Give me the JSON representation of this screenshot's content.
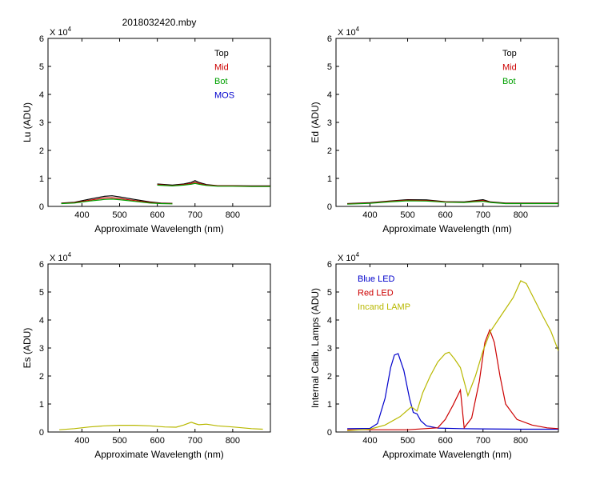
{
  "figure": {
    "title": "2018032420.mby"
  },
  "chart_data": [
    {
      "type": "line",
      "panel": "top-left",
      "xlabel": "Approximate Wavelength (nm)",
      "ylabel": "Lu (ADU)",
      "y_multiplier": "X 10",
      "y_multiplier_exp": "4",
      "xlim": [
        310,
        900
      ],
      "ylim": [
        0,
        6
      ],
      "xticks": [
        400,
        500,
        600,
        700,
        800
      ],
      "yticks": [
        0,
        1,
        2,
        3,
        4,
        5,
        6
      ],
      "legend_position": "top-right",
      "legend": [
        {
          "name": "Top",
          "color": "#000000"
        },
        {
          "name": "Mid",
          "color": "#cc0000"
        },
        {
          "name": "Bot",
          "color": "#00a000"
        },
        {
          "name": "MOS",
          "color": "#0000cc"
        }
      ],
      "series": [
        {
          "name": "Top",
          "color": "#000000",
          "x": [
            345,
            380,
            420,
            460,
            480,
            500,
            540,
            580,
            610,
            640
          ],
          "y": [
            0.12,
            0.15,
            0.26,
            0.36,
            0.38,
            0.34,
            0.25,
            0.16,
            0.12,
            0.11
          ]
        },
        {
          "name": "Mid",
          "color": "#cc0000",
          "x": [
            345,
            380,
            420,
            460,
            480,
            500,
            540,
            580,
            610,
            640
          ],
          "y": [
            0.11,
            0.13,
            0.22,
            0.3,
            0.31,
            0.28,
            0.21,
            0.14,
            0.11,
            0.1
          ]
        },
        {
          "name": "Bot",
          "color": "#00a000",
          "x": [
            345,
            380,
            420,
            460,
            480,
            500,
            540,
            580,
            610,
            640
          ],
          "y": [
            0.1,
            0.12,
            0.19,
            0.25,
            0.26,
            0.24,
            0.18,
            0.12,
            0.1,
            0.09
          ]
        },
        {
          "name": "Top",
          "color": "#000000",
          "x": [
            600,
            640,
            670,
            690,
            700,
            710,
            730,
            760,
            800,
            850,
            900
          ],
          "y": [
            0.8,
            0.76,
            0.8,
            0.86,
            0.92,
            0.86,
            0.78,
            0.74,
            0.74,
            0.73,
            0.73
          ]
        },
        {
          "name": "Mid",
          "color": "#cc0000",
          "x": [
            600,
            640,
            670,
            690,
            700,
            710,
            730,
            760,
            800,
            850,
            900
          ],
          "y": [
            0.78,
            0.74,
            0.78,
            0.82,
            0.86,
            0.82,
            0.76,
            0.73,
            0.73,
            0.72,
            0.72
          ]
        },
        {
          "name": "Bot",
          "color": "#00a000",
          "x": [
            600,
            640,
            670,
            690,
            700,
            710,
            730,
            760,
            800,
            850,
            900
          ],
          "y": [
            0.76,
            0.73,
            0.76,
            0.79,
            0.82,
            0.79,
            0.75,
            0.72,
            0.72,
            0.71,
            0.71
          ]
        }
      ]
    },
    {
      "type": "line",
      "panel": "top-right",
      "xlabel": "Approximate Wavelength (nm)",
      "ylabel": "Ed  (ADU)",
      "y_multiplier": "X 10",
      "y_multiplier_exp": "4",
      "xlim": [
        310,
        900
      ],
      "ylim": [
        0,
        6
      ],
      "xticks": [
        400,
        500,
        600,
        700,
        800
      ],
      "yticks": [
        0,
        1,
        2,
        3,
        4,
        5,
        6
      ],
      "legend_position": "top-right",
      "legend": [
        {
          "name": "Top",
          "color": "#000000"
        },
        {
          "name": "Mid",
          "color": "#cc0000"
        },
        {
          "name": "Bot",
          "color": "#00a000"
        }
      ],
      "series": [
        {
          "name": "Top",
          "color": "#000000",
          "x": [
            340,
            400,
            450,
            500,
            550,
            600,
            650,
            680,
            700,
            720,
            760,
            800,
            900
          ],
          "y": [
            0.1,
            0.13,
            0.19,
            0.24,
            0.23,
            0.17,
            0.16,
            0.21,
            0.24,
            0.16,
            0.12,
            0.12,
            0.12
          ]
        },
        {
          "name": "Mid",
          "color": "#cc0000",
          "x": [
            340,
            400,
            450,
            500,
            550,
            600,
            650,
            680,
            700,
            720,
            760,
            800,
            900
          ],
          "y": [
            0.09,
            0.12,
            0.18,
            0.22,
            0.21,
            0.16,
            0.15,
            0.19,
            0.21,
            0.15,
            0.11,
            0.11,
            0.11
          ]
        },
        {
          "name": "Bot",
          "color": "#00a000",
          "x": [
            340,
            400,
            450,
            500,
            550,
            600,
            650,
            680,
            700,
            720,
            760,
            800,
            900
          ],
          "y": [
            0.08,
            0.11,
            0.16,
            0.2,
            0.19,
            0.15,
            0.14,
            0.17,
            0.18,
            0.14,
            0.1,
            0.1,
            0.1
          ]
        }
      ]
    },
    {
      "type": "line",
      "panel": "bottom-left",
      "xlabel": "Approximate Wavelength (nm)",
      "ylabel": "Es  (ADU)",
      "y_multiplier": "X 10",
      "y_multiplier_exp": "4",
      "xlim": [
        310,
        900
      ],
      "ylim": [
        0,
        6
      ],
      "xticks": [
        400,
        500,
        600,
        700,
        800
      ],
      "yticks": [
        0,
        1,
        2,
        3,
        4,
        5,
        6
      ],
      "legend": [],
      "series": [
        {
          "color": "#b8b800",
          "x": [
            340,
            380,
            420,
            460,
            500,
            540,
            580,
            620,
            650,
            670,
            690,
            700,
            710,
            730,
            760,
            800,
            850,
            880
          ],
          "y": [
            0.08,
            0.12,
            0.18,
            0.22,
            0.24,
            0.24,
            0.22,
            0.18,
            0.17,
            0.25,
            0.35,
            0.3,
            0.26,
            0.28,
            0.22,
            0.18,
            0.12,
            0.1
          ]
        }
      ]
    },
    {
      "type": "line",
      "panel": "bottom-right",
      "xlabel": "Approximate Wavelength (nm)",
      "ylabel": "Internal Calib. Lamps (ADU)",
      "y_multiplier": "X 10",
      "y_multiplier_exp": "4",
      "xlim": [
        310,
        900
      ],
      "ylim": [
        0,
        6
      ],
      "xticks": [
        400,
        500,
        600,
        700,
        800
      ],
      "yticks": [
        0,
        1,
        2,
        3,
        4,
        5,
        6
      ],
      "legend_position": "top-left",
      "legend": [
        {
          "name": "Blue LED",
          "color": "#0000cc"
        },
        {
          "name": "Red LED",
          "color": "#cc0000"
        },
        {
          "name": "Incand LAMP",
          "color": "#b8b800"
        }
      ],
      "series": [
        {
          "name": "Blue LED",
          "color": "#0000cc",
          "x": [
            340,
            400,
            420,
            440,
            455,
            465,
            475,
            490,
            505,
            515,
            525,
            535,
            550,
            580,
            640,
            700,
            800,
            900
          ],
          "y": [
            0.12,
            0.13,
            0.3,
            1.2,
            2.3,
            2.75,
            2.8,
            2.2,
            1.2,
            0.7,
            0.65,
            0.4,
            0.22,
            0.14,
            0.12,
            0.11,
            0.1,
            0.1
          ]
        },
        {
          "name": "Red LED",
          "color": "#cc0000",
          "x": [
            340,
            500,
            580,
            600,
            620,
            640,
            650,
            670,
            690,
            705,
            718,
            730,
            745,
            760,
            790,
            830,
            870,
            900
          ],
          "y": [
            0.08,
            0.08,
            0.15,
            0.45,
            0.95,
            1.5,
            0.15,
            0.5,
            1.8,
            3.2,
            3.65,
            3.2,
            2.0,
            1.0,
            0.45,
            0.25,
            0.15,
            0.12
          ]
        },
        {
          "name": "Incand LAMP",
          "color": "#b8b800",
          "x": [
            340,
            400,
            440,
            480,
            510,
            525,
            540,
            560,
            580,
            600,
            610,
            625,
            640,
            660,
            680,
            700,
            720,
            750,
            780,
            800,
            815,
            830,
            860,
            880,
            900
          ],
          "y": [
            0.05,
            0.1,
            0.25,
            0.55,
            0.9,
            0.75,
            1.4,
            2.0,
            2.5,
            2.8,
            2.85,
            2.6,
            2.3,
            1.3,
            2.0,
            2.9,
            3.6,
            4.2,
            4.8,
            5.4,
            5.3,
            4.9,
            4.1,
            3.6,
            2.9
          ]
        }
      ]
    }
  ]
}
